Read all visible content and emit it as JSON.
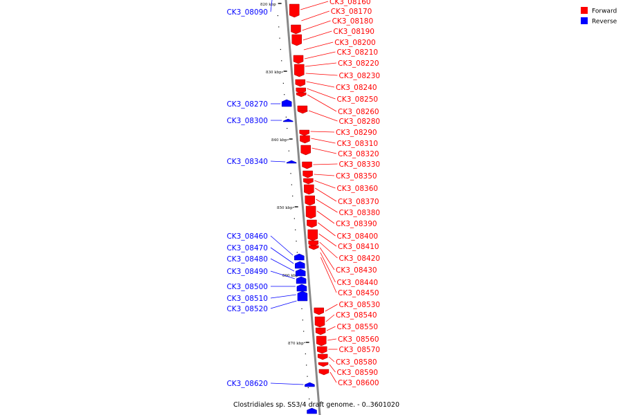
{
  "caption": "Clostridiales sp. SS3/4 draft genome. - 0..3601020",
  "legend": {
    "position": "top-right",
    "items": [
      {
        "label": "Forward",
        "color": "#ff0000"
      },
      {
        "label": "Reverse",
        "color": "#0000ff"
      }
    ]
  },
  "colors": {
    "forward": "#ff0000",
    "reverse": "#0000ff",
    "axis": "#888888"
  },
  "ticks": [
    "820 kbp",
    "830 kbp",
    "840 kbp",
    "850 kbp",
    "860 kbp",
    "870 kbp"
  ],
  "forward_genes": [
    "CK3_08160",
    "CK3_08170",
    "CK3_08180",
    "CK3_08190",
    "CK3_08200",
    "CK3_08210",
    "CK3_08220",
    "CK3_08230",
    "CK3_08240",
    "CK3_08250",
    "CK3_08260",
    "CK3_08280",
    "CK3_08290",
    "CK3_08310",
    "CK3_08320",
    "CK3_08330",
    "CK3_08350",
    "CK3_08360",
    "CK3_08370",
    "CK3_08380",
    "CK3_08390",
    "CK3_08400",
    "CK3_08410",
    "CK3_08420",
    "CK3_08430",
    "CK3_08440",
    "CK3_08450",
    "CK3_08530",
    "CK3_08540",
    "CK3_08550",
    "CK3_08560",
    "CK3_08570",
    "CK3_08580",
    "CK3_08590",
    "CK3_08600"
  ],
  "reverse_genes": [
    "CK3_08090",
    "CK3_08270",
    "CK3_08300",
    "CK3_08340",
    "CK3_08460",
    "CK3_08470",
    "CK3_08480",
    "CK3_08490",
    "CK3_08500",
    "CK3_08510",
    "CK3_08520",
    "CK3_08620"
  ]
}
